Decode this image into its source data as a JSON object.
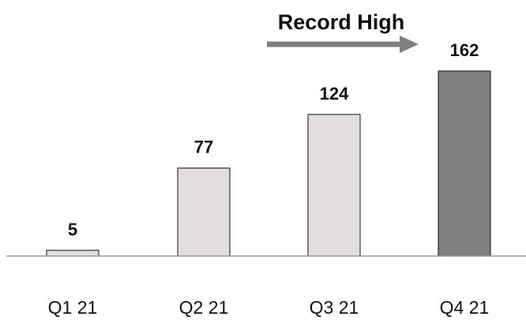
{
  "chart_data": {
    "type": "bar",
    "title": "",
    "xlabel": "",
    "ylabel": "",
    "categories": [
      "Q1 21",
      "Q2 21",
      "Q3 21",
      "Q4 21"
    ],
    "values": [
      5,
      77,
      124,
      162
    ],
    "ylim": [
      0,
      180
    ],
    "grid": false,
    "legend": "none",
    "colors": {
      "bar": "#e2dedf",
      "highlight_bar": "#808080",
      "bar_stroke": "#111111",
      "arrow": "#808080",
      "baseline": "#9a9a9a"
    },
    "highlight_index": 3,
    "annotation": {
      "text": "Record High",
      "arrow_direction": "right"
    }
  }
}
